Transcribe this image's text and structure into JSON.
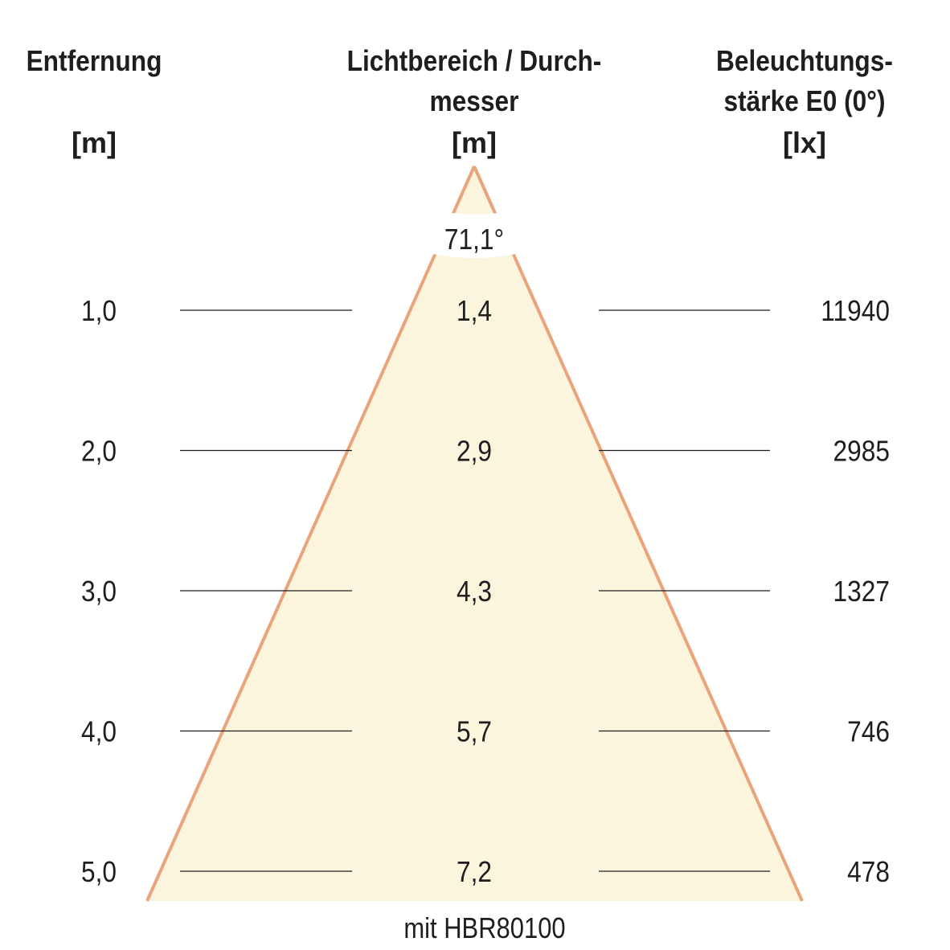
{
  "headers": {
    "distance": {
      "line1": "Entfernung",
      "unit": "[m]"
    },
    "diameter": {
      "line1": "Lichtbereich / Durch-",
      "line2": "messer",
      "unit": "[m]"
    },
    "illuminance": {
      "line1": "Beleuchtungs-",
      "line2": "stärke E0 (0°)",
      "unit": "[lx]"
    }
  },
  "beam_angle": "71,1°",
  "rows": [
    {
      "distance": "1,0",
      "diameter": "1,4",
      "illuminance": "11940"
    },
    {
      "distance": "2,0",
      "diameter": "2,9",
      "illuminance": "2985"
    },
    {
      "distance": "3,0",
      "diameter": "4,3",
      "illuminance": "1327"
    },
    {
      "distance": "4,0",
      "diameter": "5,7",
      "illuminance": "746"
    },
    {
      "distance": "5,0",
      "diameter": "7,2",
      "illuminance": "478"
    }
  ],
  "footer": "mit HBR80100",
  "colors": {
    "cone_fill": "#fbf5dd",
    "cone_edge": "#eaa47c",
    "text": "#1e1e1e"
  }
}
